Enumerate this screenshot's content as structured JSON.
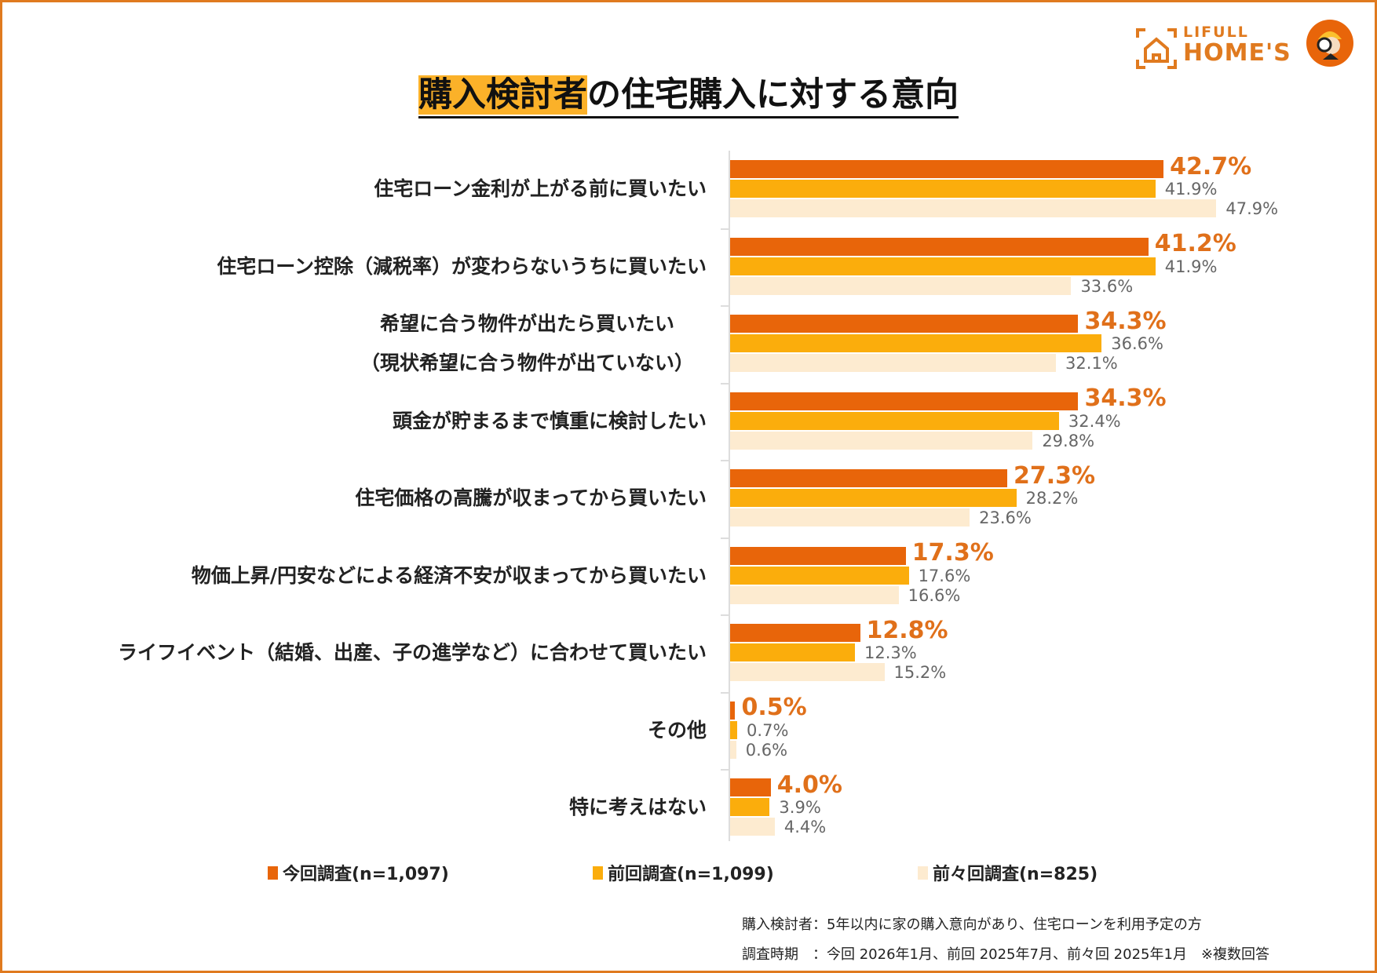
{
  "title": {
    "highlight": "購入検討者",
    "rest": "の住宅購入に対する意向"
  },
  "logo": {
    "line1": "LIFULL",
    "line2": "HOME'S"
  },
  "colors": {
    "current": "#e8650a",
    "previous": "#fbad0c",
    "before_previous": "#fdebd0",
    "border": "#e07a1f"
  },
  "chart_data": {
    "type": "bar",
    "orientation": "horizontal",
    "categories": [
      "住宅ローン金利が上がる前に買いたい",
      "住宅ローン控除（減税率）が変わらないうちに買いたい",
      "希望に合う物件が出たら買いたい\n（現状希望に合う物件が出ていない）",
      "頭金が貯まるまで慎重に検討したい",
      "住宅価格の高騰が収まってから買いたい",
      "物価上昇/円安などによる経済不安が収まってから買いたい",
      "ライフイベント（結婚、出産、子の進学など）に合わせて買いたい",
      "その他",
      "特に考えはない"
    ],
    "series": [
      {
        "name": "今回調査(n=1,097)",
        "values": [
          42.7,
          41.2,
          34.3,
          34.3,
          27.3,
          17.3,
          12.8,
          0.5,
          4.0
        ]
      },
      {
        "name": "前回調査(n=1,099)",
        "values": [
          41.9,
          41.9,
          36.6,
          32.4,
          28.2,
          17.6,
          12.3,
          0.7,
          3.9
        ]
      },
      {
        "name": "前々回調査(n=825)",
        "values": [
          47.9,
          33.6,
          32.1,
          29.8,
          23.6,
          16.6,
          15.2,
          0.6,
          4.4
        ]
      }
    ],
    "value_suffix": "%",
    "legend_position": "bottom",
    "grid": false
  },
  "notes": [
    "購入検討者：5年以内に家の購入意向があり、住宅ローンを利用予定の方",
    "調査時期　：今回 2026年1月、前回 2025年7月、前々回 2025年1月　※複数回答"
  ]
}
